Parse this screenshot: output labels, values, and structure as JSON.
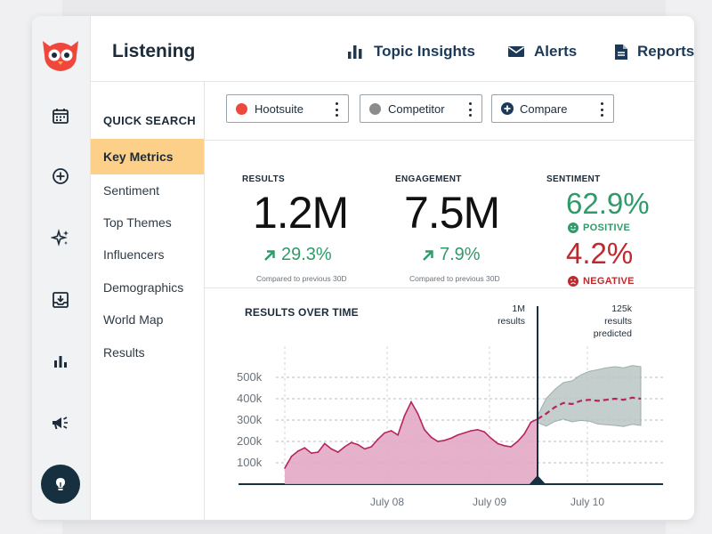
{
  "header": {
    "title": "Listening",
    "nav": [
      {
        "label": "Topic Insights",
        "icon": "bar-chart-icon"
      },
      {
        "label": "Alerts",
        "icon": "envelope-icon"
      },
      {
        "label": "Reports",
        "icon": "document-icon"
      }
    ]
  },
  "quick_search": {
    "title": "QUICK SEARCH",
    "items": [
      {
        "label": "Key Metrics",
        "active": true
      },
      {
        "label": "Sentiment"
      },
      {
        "label": "Top Themes"
      },
      {
        "label": "Influencers"
      },
      {
        "label": "Demographics"
      },
      {
        "label": "World Map"
      },
      {
        "label": "Results"
      }
    ]
  },
  "filters": [
    {
      "label": "Hootsuite",
      "dot_color": "#f0473c"
    },
    {
      "label": "Competitor",
      "dot_color": "#8c8c8c"
    },
    {
      "label": "Compare",
      "icon": "plus-circle-icon"
    }
  ],
  "metrics": {
    "results": {
      "label": "RESULTS",
      "value": "1.2M",
      "change": "29.3%",
      "note": "Compared to previous 30D"
    },
    "engagement": {
      "label": "ENGAGEMENT",
      "value": "7.5M",
      "change": "7.9%",
      "note": "Compared to previous 30D"
    },
    "sentiment": {
      "label": "SENTIMENT",
      "positive": {
        "value": "62.9%",
        "label": "POSITIVE",
        "color": "#2f9a6a"
      },
      "negative": {
        "value": "4.2%",
        "label": "NEGATIVE",
        "color": "#c0282e"
      }
    }
  },
  "chart": {
    "title": "RESULTS OVER TIME",
    "y_ticks": [
      "500k",
      "400k",
      "300k",
      "200k",
      "100k"
    ],
    "x_ticks": [
      "July 08",
      "July 09",
      "July 10"
    ],
    "marker_label": [
      "1M",
      "results"
    ],
    "predicted_label": [
      "125k",
      "results",
      "predicted"
    ],
    "colors": {
      "actual": "#e3a8c4",
      "actual_line": "#b8245e",
      "prediction_band": "#b9c6c5",
      "marker": "#17303f"
    }
  },
  "chart_data": {
    "type": "area",
    "title": "RESULTS OVER TIME",
    "xlabel": "",
    "ylabel": "",
    "x_ticks": [
      "July 08",
      "July 09",
      "July 10"
    ],
    "y_ticks": [
      100000,
      200000,
      300000,
      400000,
      500000
    ],
    "ylim": [
      0,
      550000
    ],
    "grid": true,
    "series": [
      {
        "values": [
          75000,
          130000,
          155000,
          170000,
          145000,
          150000,
          190000,
          165000,
          150000,
          175000,
          195000,
          185000,
          165000,
          175000,
          210000,
          240000,
          250000,
          230000,
          320000,
          385000,
          330000,
          255000,
          220000,
          200000,
          205000,
          215000,
          230000,
          240000,
          250000,
          255000,
          245000,
          215000,
          190000,
          180000,
          175000,
          200000,
          235000,
          290000,
          305000
        ]
      },
      {
        "values": [
          305000,
          330000,
          360000,
          380000,
          375000,
          390000,
          395000,
          390000,
          395000,
          400000,
          395000,
          405000,
          400000
        ]
      }
    ],
    "annotations": [
      {
        "text": "1M results"
      },
      {
        "text": "125k results predicted"
      }
    ]
  }
}
